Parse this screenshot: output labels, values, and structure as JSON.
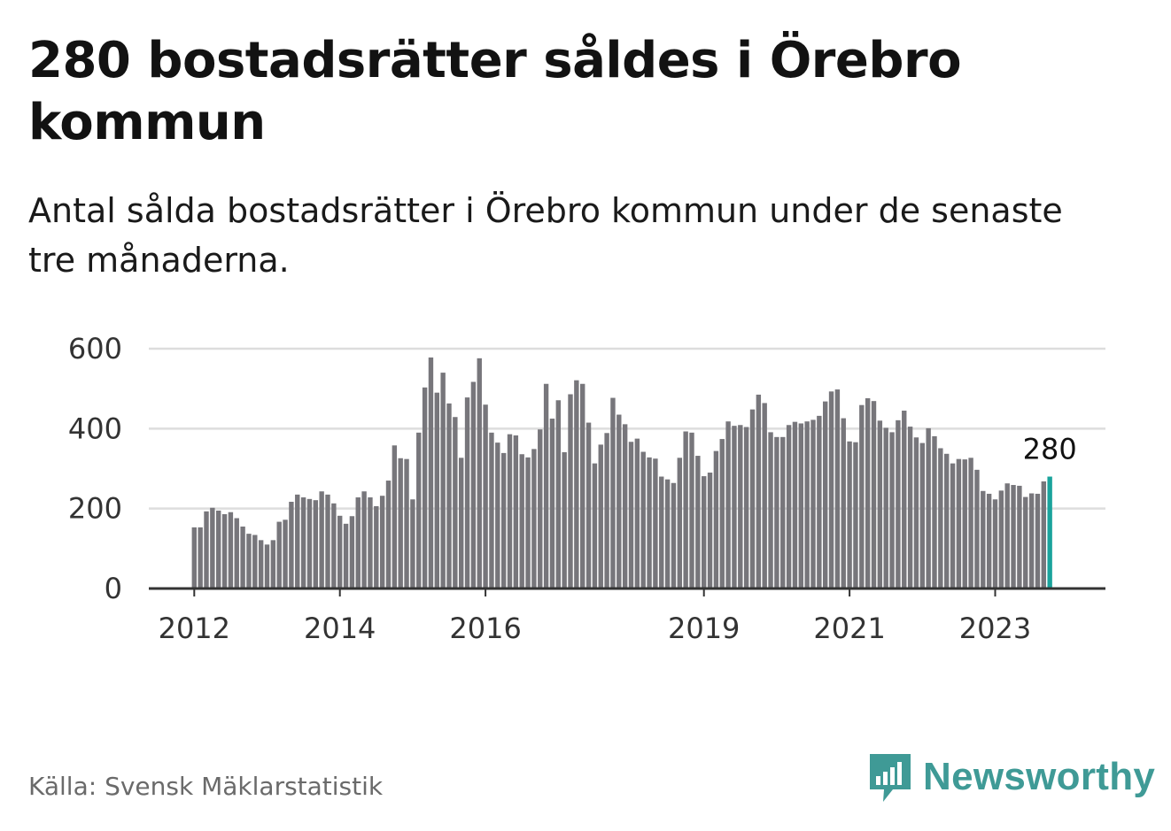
{
  "header": {
    "title": "280 bostadsrätter såldes i Örebro kommun",
    "subtitle": "Antal sålda bostadsrätter i Örebro kommun under de senaste tre månaderna."
  },
  "footer": {
    "source": "Källa: Svensk Mäklarstatistik",
    "brand_name": "Newsworthy"
  },
  "colors": {
    "bar": "#77767b",
    "highlight": "#1aa39c",
    "grid": "#dddddd",
    "axis": "#333333",
    "brand": "#3f9a96"
  },
  "chart_data": {
    "type": "bar",
    "x_start": "2012-01",
    "ylim": [
      0,
      600
    ],
    "y_ticks": [
      "0",
      "200",
      "400",
      "600"
    ],
    "x_ticks": [
      {
        "label": "2012",
        "date": "2012-01"
      },
      {
        "label": "2014",
        "date": "2014-01"
      },
      {
        "label": "2016",
        "date": "2016-01"
      },
      {
        "label": "2019",
        "date": "2019-01"
      },
      {
        "label": "2021",
        "date": "2021-01"
      },
      {
        "label": "2023",
        "date": "2023-01"
      }
    ],
    "last_label": "280",
    "grid": true,
    "values": [
      153,
      153,
      193,
      202,
      195,
      186,
      191,
      176,
      155,
      137,
      134,
      121,
      110,
      121,
      167,
      172,
      217,
      235,
      228,
      224,
      221,
      243,
      235,
      213,
      182,
      162,
      181,
      228,
      243,
      228,
      206,
      232,
      270,
      358,
      326,
      324,
      223,
      390,
      503,
      578,
      490,
      540,
      463,
      429,
      327,
      478,
      517,
      576,
      460,
      390,
      365,
      339,
      386,
      383,
      336,
      328,
      349,
      398,
      512,
      425,
      471,
      341,
      486,
      521,
      512,
      415,
      313,
      360,
      389,
      477,
      435,
      411,
      367,
      375,
      342,
      328,
      325,
      280,
      273,
      264,
      327,
      393,
      390,
      332,
      281,
      290,
      344,
      374,
      418,
      407,
      409,
      404,
      448,
      485,
      464,
      391,
      379,
      379,
      409,
      417,
      413,
      418,
      422,
      432,
      468,
      493,
      498,
      426,
      368,
      366,
      459,
      476,
      469,
      420,
      402,
      391,
      421,
      445,
      405,
      378,
      364,
      401,
      381,
      351,
      337,
      313,
      324,
      323,
      327,
      297,
      244,
      237,
      223,
      245,
      263,
      259,
      257,
      229,
      238,
      237,
      268,
      280
    ]
  }
}
